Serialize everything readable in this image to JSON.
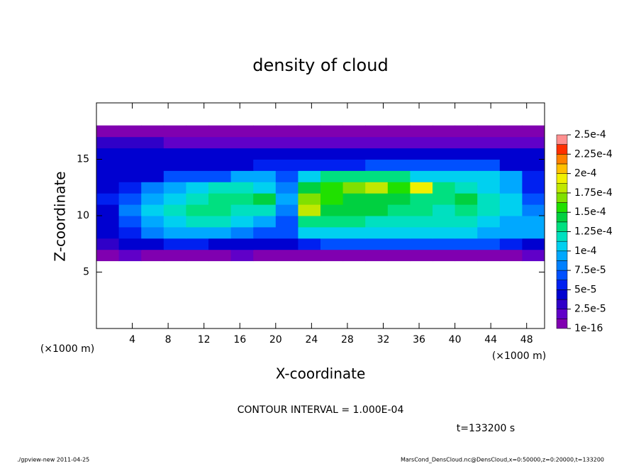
{
  "chart_data": {
    "type": "heatmap",
    "title": "density of cloud",
    "x_label": "X-coordinate",
    "y_label": "Z-coordinate",
    "x_unit": "(×1000 m)",
    "x_unit_right": "(×1000 m)",
    "contour_note": "CONTOUR INTERVAL = 1.000E-04",
    "time_note": "t=133200 s",
    "footer_left": "./gpview-new  2011-04-25",
    "footer_right": "MarsCond_DensCloud.nc@DensCloud,x=0:50000,z=0:20000,t=133200",
    "xlim": [
      0,
      50
    ],
    "ylim": [
      0,
      20
    ],
    "xticks": [
      4,
      8,
      12,
      16,
      20,
      24,
      28,
      32,
      36,
      40,
      44,
      48
    ],
    "yticks": [
      5,
      10,
      15
    ],
    "x": [
      1.25,
      3.75,
      6.25,
      8.75,
      11.25,
      13.75,
      16.25,
      18.75,
      21.25,
      23.75,
      26.25,
      28.75,
      31.25,
      33.75,
      36.25,
      38.75,
      41.25,
      43.75,
      46.25,
      48.75
    ],
    "y": [
      6.5,
      7.5,
      8.5,
      9.5,
      10.5,
      11.5,
      12.5,
      13.5,
      14.5,
      15.5,
      16.5,
      17.5
    ],
    "values": [
      [
        1e-05,
        2e-05,
        1e-05,
        1e-05,
        1e-05,
        1e-05,
        2e-05,
        1e-05,
        1e-05,
        1e-05,
        1e-05,
        1e-05,
        1e-05,
        1e-05,
        1e-05,
        1e-05,
        1e-05,
        1e-05,
        1e-05,
        2e-05
      ],
      [
        3e-05,
        4e-05,
        5e-05,
        6e-05,
        6e-05,
        5e-05,
        5e-05,
        5e-05,
        5e-05,
        6e-05,
        7e-05,
        7e-05,
        7e-05,
        7e-05,
        7e-05,
        7e-05,
        7e-05,
        7e-05,
        6e-05,
        5e-05
      ],
      [
        4e-05,
        6e-05,
        8e-05,
        0.0001,
        0.0001,
        9e-05,
        8e-05,
        7e-05,
        7e-05,
        0.00011,
        0.00011,
        0.00011,
        0.00011,
        0.00011,
        0.00011,
        0.00011,
        0.00011,
        0.0001,
        0.0001,
        9e-05
      ],
      [
        4e-05,
        7e-05,
        9e-05,
        0.00011,
        0.00012,
        0.00012,
        0.00011,
        0.0001,
        7e-05,
        0.00013,
        0.00013,
        0.00013,
        0.00012,
        0.00012,
        0.00012,
        0.00012,
        0.00012,
        0.00011,
        0.0001,
        9e-05
      ],
      [
        5e-05,
        8e-05,
        0.00011,
        0.00012,
        0.00013,
        0.00013,
        0.00012,
        0.00012,
        8e-05,
        0.00018,
        0.00015,
        0.00014,
        0.00014,
        0.00013,
        0.00013,
        0.00012,
        0.00013,
        0.00012,
        0.00011,
        8e-05
      ],
      [
        6e-05,
        7e-05,
        9e-05,
        0.00011,
        0.00012,
        0.00013,
        0.00013,
        0.00014,
        9e-05,
        0.00017,
        0.00016,
        0.00015,
        0.00015,
        0.00014,
        0.00013,
        0.00013,
        0.00014,
        0.00012,
        0.00011,
        7e-05
      ],
      [
        5e-05,
        6e-05,
        8e-05,
        0.0001,
        0.00011,
        0.00012,
        0.00012,
        0.00011,
        8e-05,
        0.00014,
        0.00016,
        0.00017,
        0.00018,
        0.00016,
        0.00019,
        0.00013,
        0.00012,
        0.00011,
        0.0001,
        6e-05
      ],
      [
        5e-05,
        5e-05,
        5e-05,
        7e-05,
        7e-05,
        7e-05,
        9e-05,
        0.0001,
        7e-05,
        0.00011,
        0.00013,
        0.00013,
        0.00013,
        0.00013,
        0.00011,
        0.00011,
        0.00011,
        0.00011,
        9e-05,
        6e-05
      ],
      [
        5e-05,
        5e-05,
        5e-05,
        5e-05,
        5e-05,
        5e-05,
        5e-05,
        6e-05,
        6e-05,
        6e-05,
        6e-05,
        6e-05,
        7e-05,
        7e-05,
        7e-05,
        7e-05,
        7e-05,
        7e-05,
        5e-05,
        5e-05
      ],
      [
        4e-05,
        4e-05,
        4e-05,
        5e-05,
        4e-05,
        4e-05,
        4e-05,
        5e-05,
        4e-05,
        4e-05,
        5e-05,
        4e-05,
        4e-05,
        4e-05,
        5e-05,
        4e-05,
        4e-05,
        4e-05,
        4e-05,
        4e-05
      ],
      [
        3e-05,
        3e-05,
        3e-05,
        2e-05,
        2e-05,
        2e-05,
        2e-05,
        2e-05,
        2e-05,
        2e-05,
        2e-05,
        2e-05,
        2e-05,
        2e-05,
        2e-05,
        2e-05,
        2e-05,
        2e-05,
        2e-05,
        2e-05
      ],
      [
        1e-05,
        1e-05,
        1e-05,
        1e-05,
        1e-05,
        1e-05,
        1e-05,
        1e-05,
        1e-05,
        1e-05,
        1e-05,
        1e-05,
        1e-05,
        1e-05,
        1e-05,
        1e-05,
        1e-05,
        1e-05,
        1e-05,
        1e-05
      ]
    ],
    "colors": [
      "#8000b0",
      "#6000c8",
      "#3000c8",
      "#0000d0",
      "#0020f0",
      "#0050ff",
      "#0080ff",
      "#00a8ff",
      "#00d0f0",
      "#00e0c0",
      "#00e080",
      "#00d040",
      "#20e000",
      "#80e000",
      "#c0e800",
      "#f0f000",
      "#ffc000",
      "#ff8000",
      "#ff3000",
      "#ff9090"
    ],
    "colorbar_ticks": [
      {
        "value": 1e-16,
        "label": "1e-16"
      },
      {
        "value": 2.5e-05,
        "label": "2.5e-5"
      },
      {
        "value": 5e-05,
        "label": "5e-5"
      },
      {
        "value": 7.5e-05,
        "label": "7.5e-5"
      },
      {
        "value": 0.0001,
        "label": "1e-4"
      },
      {
        "value": 0.000125,
        "label": "1.25e-4"
      },
      {
        "value": 0.00015,
        "label": "1.5e-4"
      },
      {
        "value": 0.000175,
        "label": "1.75e-4"
      },
      {
        "value": 0.0002,
        "label": "2e-4"
      },
      {
        "value": 0.000225,
        "label": "2.25e-4"
      },
      {
        "value": 0.00025,
        "label": "2.5e-4"
      }
    ]
  }
}
